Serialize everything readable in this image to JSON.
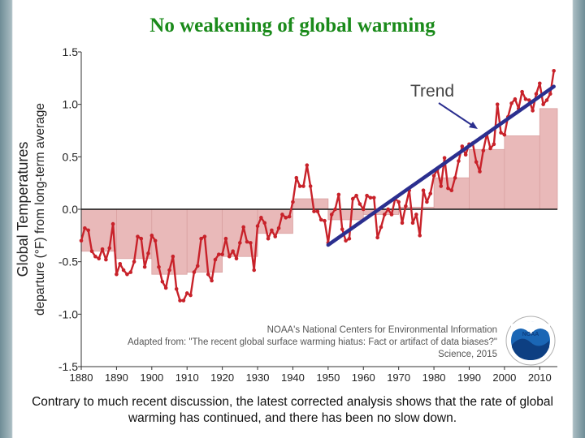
{
  "slide": {
    "title": "No weakening of global warming",
    "caption": "Contrary to much recent discussion, the latest corrected analysis shows that the rate of global warming has continued, and there has been no slow down."
  },
  "chart_data": {
    "type": "line",
    "ylabel": "Global Temperatures",
    "ylabel_sub": "departure (°F) from long-term average",
    "xlim": [
      1880,
      2015
    ],
    "ylim": [
      -1.5,
      1.5
    ],
    "yticks": [
      -1.5,
      -1.0,
      -0.5,
      0.0,
      0.5,
      1.0,
      1.5
    ],
    "ytick_labels": [
      "-1.5",
      "-1.0",
      "-0.5",
      "0.0",
      "0.5",
      "1.0",
      "1.5"
    ],
    "xticks": [
      1880,
      1890,
      1900,
      1910,
      1920,
      1930,
      1940,
      1950,
      1960,
      1970,
      1980,
      1990,
      2000,
      2010
    ],
    "xtick_labels": [
      "1880",
      "1890",
      "1900",
      "1910",
      "1920",
      "1930",
      "1940",
      "1950",
      "1960",
      "1970",
      "1980",
      "1990",
      "2000",
      "2010"
    ],
    "series": [
      {
        "color": "#c8222a",
        "x": [
          1880,
          1881,
          1882,
          1883,
          1884,
          1885,
          1886,
          1887,
          1888,
          1889,
          1890,
          1891,
          1892,
          1893,
          1894,
          1895,
          1896,
          1897,
          1898,
          1899,
          1900,
          1901,
          1902,
          1903,
          1904,
          1905,
          1906,
          1907,
          1908,
          1909,
          1910,
          1911,
          1912,
          1913,
          1914,
          1915,
          1916,
          1917,
          1918,
          1919,
          1920,
          1921,
          1922,
          1923,
          1924,
          1925,
          1926,
          1927,
          1928,
          1929,
          1930,
          1931,
          1932,
          1933,
          1934,
          1935,
          1936,
          1937,
          1938,
          1939,
          1940,
          1941,
          1942,
          1943,
          1944,
          1945,
          1946,
          1947,
          1948,
          1949,
          1950,
          1951,
          1952,
          1953,
          1954,
          1955,
          1956,
          1957,
          1958,
          1959,
          1960,
          1961,
          1962,
          1963,
          1964,
          1965,
          1966,
          1967,
          1968,
          1969,
          1970,
          1971,
          1972,
          1973,
          1974,
          1975,
          1976,
          1977,
          1978,
          1979,
          1980,
          1981,
          1982,
          1983,
          1984,
          1985,
          1986,
          1987,
          1988,
          1989,
          1990,
          1991,
          1992,
          1993,
          1994,
          1995,
          1996,
          1997,
          1998,
          1999,
          2000,
          2001,
          2002,
          2003,
          2004,
          2005,
          2006,
          2007,
          2008,
          2009,
          2010,
          2011,
          2012,
          2013,
          2014
        ],
        "y": [
          -0.3,
          -0.18,
          -0.2,
          -0.4,
          -0.45,
          -0.47,
          -0.38,
          -0.48,
          -0.37,
          -0.14,
          -0.62,
          -0.52,
          -0.58,
          -0.62,
          -0.6,
          -0.5,
          -0.26,
          -0.28,
          -0.55,
          -0.42,
          -0.25,
          -0.3,
          -0.55,
          -0.69,
          -0.75,
          -0.58,
          -0.45,
          -0.76,
          -0.87,
          -0.87,
          -0.8,
          -0.82,
          -0.6,
          -0.54,
          -0.28,
          -0.26,
          -0.62,
          -0.68,
          -0.48,
          -0.43,
          -0.43,
          -0.28,
          -0.45,
          -0.4,
          -0.47,
          -0.32,
          -0.17,
          -0.31,
          -0.32,
          -0.58,
          -0.16,
          -0.08,
          -0.13,
          -0.28,
          -0.2,
          -0.26,
          -0.18,
          -0.05,
          -0.08,
          -0.07,
          0.07,
          0.3,
          0.22,
          0.22,
          0.42,
          0.22,
          -0.02,
          -0.02,
          -0.1,
          -0.11,
          -0.32,
          -0.05,
          0.0,
          0.14,
          -0.19,
          -0.3,
          -0.28,
          0.1,
          0.13,
          0.05,
          0.0,
          0.13,
          0.11,
          0.11,
          -0.27,
          -0.17,
          -0.05,
          0.0,
          -0.05,
          0.1,
          0.07,
          -0.13,
          0.03,
          0.18,
          -0.13,
          -0.05,
          -0.25,
          0.18,
          0.07,
          0.15,
          0.32,
          0.38,
          0.22,
          0.49,
          0.2,
          0.18,
          0.3,
          0.46,
          0.6,
          0.52,
          0.62,
          0.63,
          0.45,
          0.36,
          0.56,
          0.72,
          0.58,
          0.62,
          1.0,
          0.73,
          0.71,
          0.88,
          1.01,
          1.05,
          0.96,
          1.12,
          1.05,
          1.04,
          0.94,
          1.1,
          1.2,
          1.0,
          1.04,
          1.1,
          1.32
        ]
      },
      {
        "name": "Trend",
        "color": "#2b2f8f",
        "x": [
          1950,
          2014
        ],
        "y": [
          -0.34,
          1.17
        ]
      }
    ],
    "bars": {
      "color": "#e9b9b9",
      "edge": "#d9a0a0",
      "decades": [
        {
          "start": 1880,
          "end": 1890,
          "value": -0.4
        },
        {
          "start": 1890,
          "end": 1900,
          "value": -0.47
        },
        {
          "start": 1900,
          "end": 1910,
          "value": -0.62
        },
        {
          "start": 1910,
          "end": 1920,
          "value": -0.6
        },
        {
          "start": 1920,
          "end": 1930,
          "value": -0.45
        },
        {
          "start": 1930,
          "end": 1940,
          "value": -0.23
        },
        {
          "start": 1940,
          "end": 1950,
          "value": 0.1
        },
        {
          "start": 1950,
          "end": 1960,
          "value": -0.1
        },
        {
          "start": 1960,
          "end": 1970,
          "value": -0.05
        },
        {
          "start": 1970,
          "end": 1980,
          "value": 0.02
        },
        {
          "start": 1980,
          "end": 1990,
          "value": 0.3
        },
        {
          "start": 1990,
          "end": 2000,
          "value": 0.57
        },
        {
          "start": 2000,
          "end": 2010,
          "value": 0.7
        },
        {
          "start": 2010,
          "end": 2015,
          "value": 0.96
        }
      ]
    },
    "annotations": {
      "trend_label": "Trend",
      "source_line1": "NOAA's National Centers for Environmental Information",
      "source_line2": "Adapted from: \"The recent global surface warming hiatus: Fact or artifact of data biases?\"",
      "source_line3": "Science, 2015",
      "logo_text": "NOAA"
    },
    "grid": false,
    "zero_line": true
  }
}
